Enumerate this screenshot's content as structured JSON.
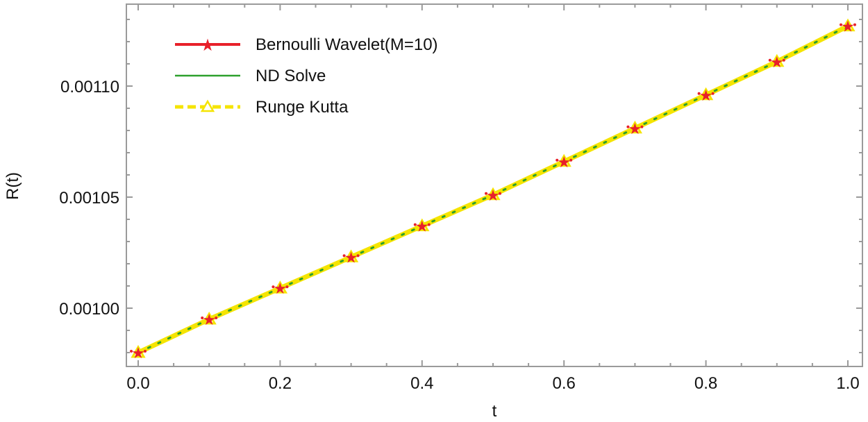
{
  "chart_data": {
    "type": "line",
    "title": "",
    "xlabel": "t",
    "ylabel": "R(t)",
    "xlim": [
      -0.017,
      1.02
    ],
    "ylim": [
      0.000974,
      0.001138
    ],
    "grid": false,
    "legend_position": "upper-left (inside)",
    "x_ticks": [
      0.0,
      0.2,
      0.4,
      0.6,
      0.8,
      1.0
    ],
    "x_tick_labels": [
      "0.0",
      "0.2",
      "0.4",
      "0.6",
      "0.8",
      "1.0"
    ],
    "y_ticks": [
      0.001,
      0.00105,
      0.0011
    ],
    "y_tick_labels": [
      "0.00100",
      "0.00105",
      "0.00110"
    ],
    "x": [
      0.0,
      0.1,
      0.2,
      0.3,
      0.4,
      0.5,
      0.6,
      0.7,
      0.8,
      0.9,
      1.0
    ],
    "series": [
      {
        "name": "Bernoulli Wavelet(M=10)",
        "color": "#e8202a",
        "style": "solid line with star markers",
        "marker": "star",
        "values": [
          0.00098,
          0.000995,
          0.001009,
          0.001023,
          0.001037,
          0.001051,
          0.001066,
          0.001081,
          0.001096,
          0.001111,
          0.001127
        ]
      },
      {
        "name": "ND Solve",
        "color": "#2ca02c",
        "style": "thin solid (rendered dotted over yellow)",
        "marker": "none",
        "values": [
          0.00098,
          0.000995,
          0.001009,
          0.001023,
          0.001037,
          0.001051,
          0.001066,
          0.001081,
          0.001096,
          0.001111,
          0.001127
        ]
      },
      {
        "name": "Runge Kutta",
        "color": "#f5e400",
        "style": "thick dashed with open triangle markers",
        "marker": "triangle-open",
        "values": [
          0.00098,
          0.000995,
          0.001009,
          0.001023,
          0.001037,
          0.001051,
          0.001066,
          0.001081,
          0.001096,
          0.001111,
          0.001127
        ]
      }
    ]
  },
  "legend": {
    "items": [
      {
        "label": "Bernoulli Wavelet(M=10)",
        "color": "#e8202a"
      },
      {
        "label": "ND Solve",
        "color": "#2ca02c"
      },
      {
        "label": "Runge Kutta",
        "color": "#f5e400"
      }
    ]
  },
  "colors": {
    "frame": "#9a9a9a",
    "text": "#111111"
  }
}
